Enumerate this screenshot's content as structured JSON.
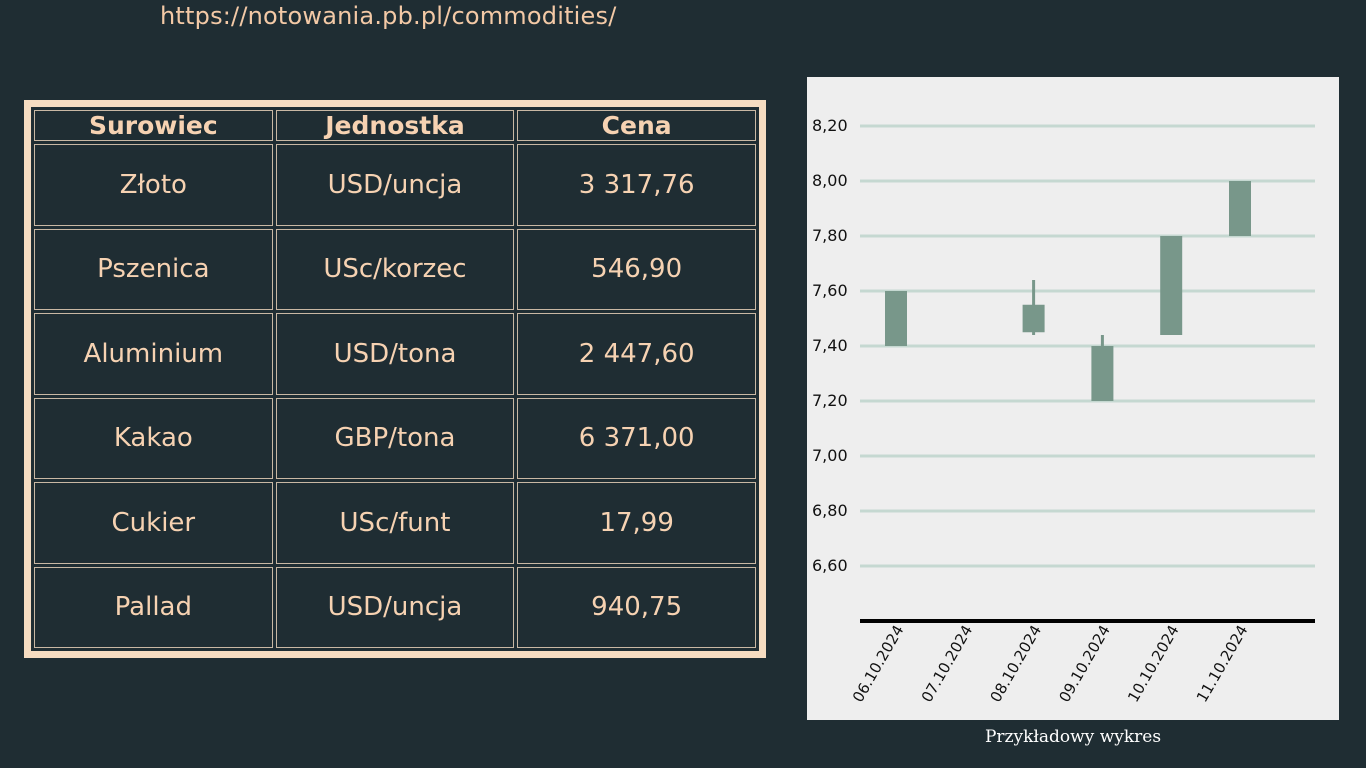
{
  "url": "https://notowania.pb.pl/commodities/",
  "table": {
    "headers": [
      "Surowiec",
      "Jednostka",
      "Cena"
    ],
    "rows": [
      [
        "Złoto",
        "USD/uncja",
        "3 317,76"
      ],
      [
        "Pszenica",
        "USc/korzec",
        "546,90"
      ],
      [
        "Aluminium",
        "USD/tona",
        "2 447,60"
      ],
      [
        "Kakao",
        "GBP/tona",
        "6 371,00"
      ],
      [
        "Cukier",
        "USc/funt",
        "17,99"
      ],
      [
        "Pallad",
        "USD/uncja",
        "940,75"
      ]
    ]
  },
  "chart_caption": "Przykładowy wykres",
  "colors": {
    "background": "#1f2d33",
    "accent_text": "#f6d2b2",
    "table_frame": "#f6dcc1",
    "chart_bg": "#eeeeee",
    "gridline": "#c5d8d1",
    "candle": "#78978a"
  },
  "chart_data": {
    "type": "candlestick",
    "title": "",
    "xlabel": "",
    "ylabel": "",
    "categories": [
      "06.10.2024",
      "07.10.2024",
      "08.10.2024",
      "09.10.2024",
      "10.10.2024",
      "11.10.2024"
    ],
    "ylim": [
      6.4,
      8.3
    ],
    "yticks": [
      6.6,
      6.8,
      7.0,
      7.2,
      7.4,
      7.6,
      7.8,
      8.0,
      8.2
    ],
    "ytick_labels": [
      "6,60",
      "6,80",
      "7,00",
      "7,20",
      "7,40",
      "7,60",
      "7,80",
      "8,00",
      "8,20"
    ],
    "grid": true,
    "series": [
      {
        "values": [
          {
            "x": "06.10.2024",
            "open": 7.4,
            "high": 7.6,
            "low": 7.4,
            "close": 7.6
          },
          {
            "x": "07.10.2024",
            "open": null,
            "high": null,
            "low": null,
            "close": null
          },
          {
            "x": "08.10.2024",
            "open": 7.45,
            "high": 7.64,
            "low": 7.44,
            "close": 7.55
          },
          {
            "x": "09.10.2024",
            "open": 7.4,
            "high": 7.44,
            "low": 7.2,
            "close": 7.2
          },
          {
            "x": "10.10.2024",
            "open": 7.8,
            "high": 7.8,
            "low": 7.44,
            "close": 7.44
          },
          {
            "x": "11.10.2024",
            "open": 7.8,
            "high": 8.0,
            "low": 7.8,
            "close": 8.0
          }
        ]
      }
    ]
  }
}
